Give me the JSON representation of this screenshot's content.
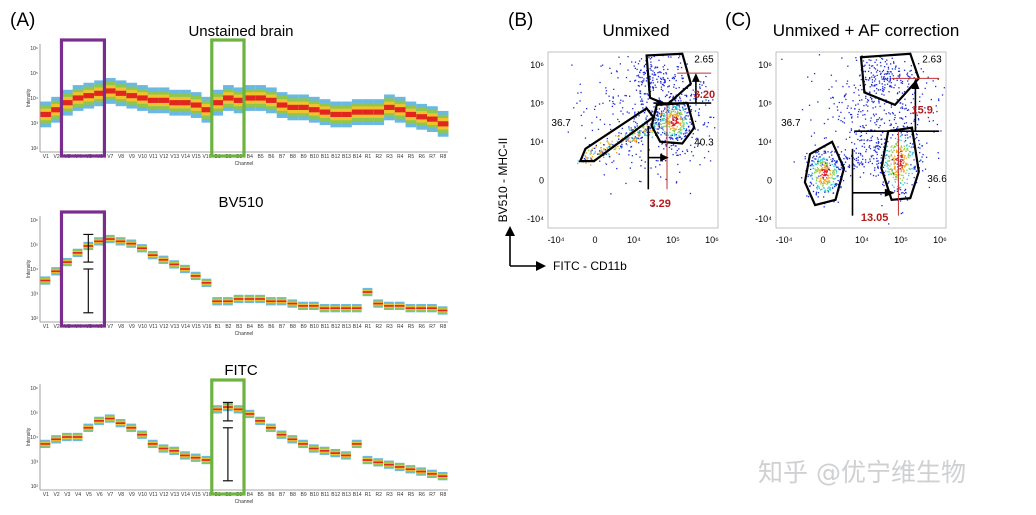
{
  "panel_labels": {
    "a": "(A)",
    "b": "(B)",
    "c": "(C)"
  },
  "watermark": "知乎 @优宁维生物",
  "colors": {
    "purple_box": "#7b2d8e",
    "green_box": "#6db33f",
    "gate_red": "#c0322f",
    "value_red": "#b51b1b"
  },
  "chart_data": [
    {
      "type": "heatmap",
      "title": "Unstained brain",
      "ylabel": "Intensity",
      "xlabel": "Channel",
      "y_ticks": [
        "10⁶",
        "10⁵",
        "10⁴",
        "10³",
        "10²"
      ],
      "channels": [
        "V1",
        "V2",
        "V3",
        "V4",
        "V5",
        "V6",
        "V7",
        "V8",
        "V9",
        "V10",
        "V11",
        "V12",
        "V13",
        "V14",
        "V15",
        "V16",
        "B1",
        "B2",
        "B3",
        "B4",
        "B5",
        "B6",
        "B7",
        "B8",
        "B9",
        "B10",
        "B11",
        "B12",
        "B13",
        "B14",
        "R1",
        "R2",
        "R3",
        "R4",
        "R5",
        "R6",
        "R7",
        "R8"
      ],
      "median_log": [
        3.2,
        3.4,
        3.7,
        3.9,
        4.0,
        4.1,
        4.2,
        4.1,
        4.0,
        3.9,
        3.8,
        3.8,
        3.7,
        3.7,
        3.6,
        3.4,
        3.7,
        3.9,
        3.8,
        3.9,
        3.9,
        3.8,
        3.6,
        3.5,
        3.5,
        3.4,
        3.3,
        3.2,
        3.2,
        3.3,
        3.3,
        3.3,
        3.5,
        3.4,
        3.2,
        3.1,
        3.0,
        2.8
      ],
      "spread": 0.55,
      "highlight_boxes": [
        {
          "color": "purple",
          "from": "V3",
          "to": "V6"
        },
        {
          "color": "green",
          "from": "B1",
          "to": "B3"
        }
      ]
    },
    {
      "type": "heatmap",
      "title": "BV510",
      "ylabel": "Intensity",
      "xlabel": "Channel",
      "y_ticks": [
        "10⁶",
        "10⁵",
        "10⁴",
        "10³",
        "10²"
      ],
      "channels": [
        "V1",
        "V2",
        "V3",
        "V4",
        "V5",
        "V6",
        "V7",
        "V8",
        "V9",
        "V10",
        "V11",
        "V12",
        "V13",
        "V14",
        "V15",
        "V16",
        "B1",
        "B2",
        "B3",
        "B4",
        "B5",
        "B6",
        "B7",
        "B8",
        "B9",
        "B10",
        "B11",
        "B12",
        "B13",
        "B14",
        "R1",
        "R2",
        "R3",
        "R4",
        "R5",
        "R6",
        "R7",
        "R8"
      ],
      "median_log": [
        3.4,
        3.8,
        4.2,
        4.6,
        4.9,
        5.1,
        5.2,
        5.1,
        5.0,
        4.8,
        4.5,
        4.3,
        4.1,
        3.9,
        3.6,
        3.3,
        2.5,
        2.5,
        2.6,
        2.6,
        2.6,
        2.5,
        2.5,
        2.4,
        2.3,
        2.3,
        2.2,
        2.2,
        2.2,
        2.2,
        2.9,
        2.4,
        2.3,
        2.3,
        2.2,
        2.2,
        2.2,
        2.1
      ],
      "spread": 0.18,
      "error_bars": [
        {
          "channel": "V5",
          "low": 4.2,
          "high": 5.4
        },
        {
          "channel": "V5",
          "low": 2.0,
          "high": 3.9
        }
      ],
      "highlight_boxes": [
        {
          "color": "purple",
          "from": "V3",
          "to": "V6"
        }
      ]
    },
    {
      "type": "heatmap",
      "title": "FITC",
      "ylabel": "Intensity",
      "xlabel": "Channel",
      "y_ticks": [
        "10⁶",
        "10⁵",
        "10⁴",
        "10³",
        "10²"
      ],
      "channels": [
        "V1",
        "V2",
        "V3",
        "V4",
        "V5",
        "V6",
        "V7",
        "V8",
        "V9",
        "V10",
        "V11",
        "V12",
        "V13",
        "V14",
        "V15",
        "V16",
        "B1",
        "B2",
        "B3",
        "B4",
        "B5",
        "B6",
        "B7",
        "B8",
        "B9",
        "B10",
        "B11",
        "B12",
        "B13",
        "B14",
        "R1",
        "R2",
        "R3",
        "R4",
        "R5",
        "R6",
        "R7",
        "R8"
      ],
      "median_log": [
        3.6,
        3.8,
        3.9,
        3.9,
        4.3,
        4.6,
        4.7,
        4.5,
        4.3,
        4.0,
        3.6,
        3.4,
        3.3,
        3.1,
        3.0,
        2.9,
        5.1,
        5.2,
        5.1,
        4.9,
        4.6,
        4.3,
        4.0,
        3.8,
        3.6,
        3.4,
        3.3,
        3.2,
        3.1,
        3.6,
        2.9,
        2.8,
        2.7,
        2.6,
        2.5,
        2.4,
        2.3,
        2.2
      ],
      "spread": 0.18,
      "error_bars": [
        {
          "channel": "B2",
          "low": 4.6,
          "high": 5.4
        },
        {
          "channel": "B2",
          "low": 2.0,
          "high": 4.3
        }
      ],
      "highlight_boxes": [
        {
          "color": "green",
          "from": "B1",
          "to": "B3"
        }
      ]
    },
    {
      "type": "scatter",
      "title": "Unmixed",
      "xlabel": "FITC - CD11b",
      "ylabel": "BV510 - MHC-II",
      "x_ticks": [
        "-10⁴",
        "0",
        "10⁴",
        "10⁵",
        "10⁶"
      ],
      "y_ticks": [
        "10⁶",
        "10⁵",
        "10⁴",
        "0",
        "-10⁴"
      ],
      "gate_values": {
        "top_right": "2.65",
        "left": "36.7",
        "bottom_right": "40.3"
      },
      "shift_values": {
        "vertical": "3.20",
        "horizontal": "3.29"
      }
    },
    {
      "type": "scatter",
      "title": "Unmixed + AF correction",
      "xlabel": "FITC - CD11b",
      "ylabel": "BV510 - MHC-II",
      "x_ticks": [
        "-10⁴",
        "0",
        "10⁴",
        "10⁵",
        "10⁶"
      ],
      "y_ticks": [
        "10⁶",
        "10⁵",
        "10⁴",
        "0",
        "-10⁴"
      ],
      "gate_values": {
        "top_right": "2.63",
        "left": "36.7",
        "bottom_right": "36.6"
      },
      "shift_values": {
        "vertical": "15.9",
        "horizontal": "13.05"
      }
    }
  ]
}
